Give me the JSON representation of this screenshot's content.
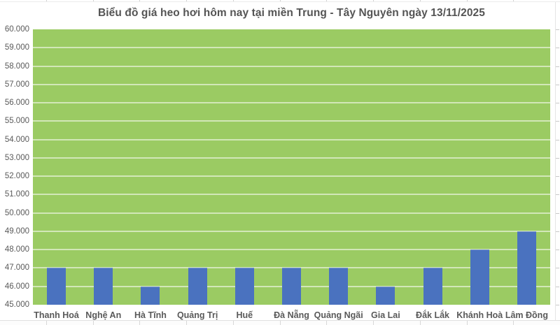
{
  "chart_data": {
    "type": "bar",
    "title": "Biểu đồ giá heo hơi hôm nay tại miền Trung - Tây Nguyên ngày 13/11/2025",
    "categories": [
      "Thanh Hoá",
      "Nghệ An",
      "Hà Tĩnh",
      "Quảng Trị",
      "Huế",
      "Đà Nẵng",
      "Quảng Ngãi",
      "Gia Lai",
      "Đắk Lắk",
      "Khánh Hoà",
      "Lâm Đồng"
    ],
    "values": [
      47000,
      47000,
      46000,
      47000,
      47000,
      47000,
      47000,
      46000,
      47000,
      48000,
      49000
    ],
    "xlabel": "",
    "ylabel": "",
    "ylim": [
      45000,
      60000
    ],
    "ytick_step": 1000,
    "y_tick_labels": [
      "45.000",
      "46.000",
      "47.000",
      "48.000",
      "49.000",
      "50.000",
      "51.000",
      "52.000",
      "53.000",
      "54.000",
      "55.000",
      "56.000",
      "57.000",
      "58.000",
      "59.000",
      "60.000"
    ],
    "grid": true,
    "legend": "none",
    "plot_bg_color": "#9bcb63",
    "bar_color": "#4a72bf",
    "gridline_color": "rgba(255,255,255,0.55)",
    "text_color": "#595959",
    "title_color": "#545454"
  },
  "page": {
    "top_table_edge_columns": 12,
    "bottom_table_edge_columns": 12
  }
}
